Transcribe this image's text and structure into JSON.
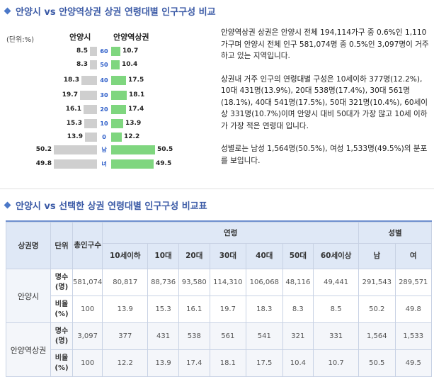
{
  "top_title": "안양시 vs 안양역상권 상권 연령대별 인구구성 비교",
  "unit_label": "(단위:%)",
  "left_header": "안양시",
  "right_header": "안양역상권",
  "pyramid": [
    {
      "age": "60",
      "left": "8.5",
      "right": "10.7",
      "lv": 8.5,
      "rv": 10.7
    },
    {
      "age": "50",
      "left": "8.3",
      "right": "10.4",
      "lv": 8.3,
      "rv": 10.4
    },
    {
      "age": "40",
      "left": "18.3",
      "right": "17.5",
      "lv": 18.3,
      "rv": 17.5
    },
    {
      "age": "30",
      "left": "19.7",
      "right": "18.1",
      "lv": 19.7,
      "rv": 18.1
    },
    {
      "age": "20",
      "left": "16.1",
      "right": "17.4",
      "lv": 16.1,
      "rv": 17.4
    },
    {
      "age": "10",
      "left": "15.3",
      "right": "13.9",
      "lv": 15.3,
      "rv": 13.9
    },
    {
      "age": "0",
      "left": "13.9",
      "right": "12.2",
      "lv": 13.9,
      "rv": 12.2
    },
    {
      "age": "남",
      "left": "50.2",
      "right": "50.5",
      "lv": 50.2,
      "rv": 50.5
    },
    {
      "age": "녀",
      "left": "49.8",
      "right": "49.5",
      "lv": 49.8,
      "rv": 49.5
    }
  ],
  "description": {
    "p1": "안양역상권 상권은 안양시 전체 194,114가구 중 0.6%인 1,110가구며 안양시 전체 인구 581,074명 중 0.5%인 3,097명이 거주하고 있는 지역입니다.",
    "p2": "상권내 거주 인구의 연령대별 구성은 10세이하 377명(12.2%), 10대 431명(13.9%), 20대 538명(17.4%), 30대 561명(18.1%), 40대 541명(17.5%), 50대 321명(10.4%), 60세이상 331명(10.7%)이며 안양시 대비 50대가 가장 많고 10세 이하가 가장 적은 연령대 입니다.",
    "p3": "성별로는 남성 1,564명(50.5%), 여성 1,533명(49.5%)의 분포를 보입니다."
  },
  "bottom_title": "안양시 vs 선택한 상권 연령대별 인구구성 비교표",
  "table": {
    "h_region": "상권명",
    "h_unit": "단위",
    "h_total": "총인구수",
    "h_age": "연령",
    "h_gender": "성별",
    "age_cols": [
      "10세이하",
      "10대",
      "20대",
      "30대",
      "40대",
      "50대",
      "60세이상"
    ],
    "gender_cols": [
      "남",
      "여"
    ],
    "rows": [
      {
        "region": "안양시",
        "r1_label": "명수(명)",
        "r1": [
          "581,074",
          "80,817",
          "88,736",
          "93,580",
          "114,310",
          "106,068",
          "48,116",
          "49,441",
          "291,543",
          "289,571"
        ],
        "r2_label": "비율(%)",
        "r2": [
          "100",
          "13.9",
          "15.3",
          "16.1",
          "19.7",
          "18.3",
          "8.3",
          "8.5",
          "50.2",
          "49.8"
        ]
      },
      {
        "region": "안양역상권",
        "r1_label": "명수(명)",
        "r1": [
          "3,097",
          "377",
          "431",
          "538",
          "561",
          "541",
          "321",
          "331",
          "1,564",
          "1,533"
        ],
        "r2_label": "비율(%)",
        "r2": [
          "100",
          "12.2",
          "13.9",
          "17.4",
          "18.1",
          "17.5",
          "10.4",
          "10.7",
          "50.5",
          "49.5"
        ]
      }
    ]
  }
}
